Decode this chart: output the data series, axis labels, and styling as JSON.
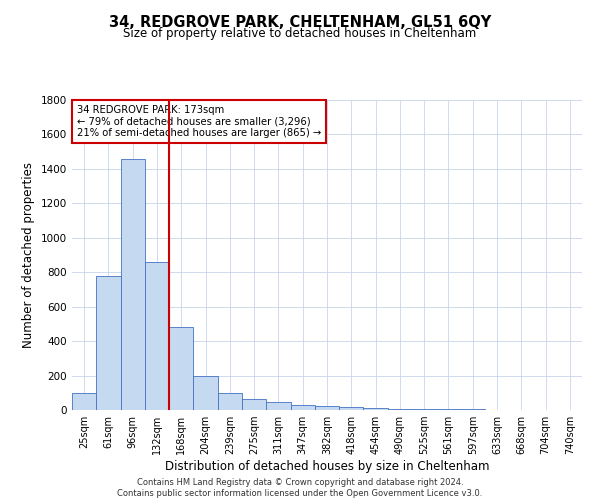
{
  "title1": "34, REDGROVE PARK, CHELTENHAM, GL51 6QY",
  "title2": "Size of property relative to detached houses in Cheltenham",
  "xlabel": "Distribution of detached houses by size in Cheltenham",
  "ylabel": "Number of detached properties",
  "categories": [
    "25sqm",
    "61sqm",
    "96sqm",
    "132sqm",
    "168sqm",
    "204sqm",
    "239sqm",
    "275sqm",
    "311sqm",
    "347sqm",
    "382sqm",
    "418sqm",
    "454sqm",
    "490sqm",
    "525sqm",
    "561sqm",
    "597sqm",
    "633sqm",
    "668sqm",
    "704sqm",
    "740sqm"
  ],
  "values": [
    100,
    780,
    1460,
    860,
    480,
    200,
    100,
    65,
    45,
    30,
    25,
    20,
    10,
    5,
    5,
    4,
    3,
    2,
    2,
    2,
    2
  ],
  "bar_color": "#c5d9f1",
  "bar_edge_color": "#4472c4",
  "vline_x": 3.5,
  "annotation_title": "34 REDGROVE PARK: 173sqm",
  "annotation_line1": "← 79% of detached houses are smaller (3,296)",
  "annotation_line2": "21% of semi-detached houses are larger (865) →",
  "vline_color": "#cc0000",
  "annotation_box_color": "#ffffff",
  "annotation_box_edge": "#cc0000",
  "ylim": [
    0,
    1800
  ],
  "yticks": [
    0,
    200,
    400,
    600,
    800,
    1000,
    1200,
    1400,
    1600,
    1800
  ],
  "footer1": "Contains HM Land Registry data © Crown copyright and database right 2024.",
  "footer2": "Contains public sector information licensed under the Open Government Licence v3.0.",
  "bg_color": "#ffffff",
  "grid_color": "#c8d4e8"
}
